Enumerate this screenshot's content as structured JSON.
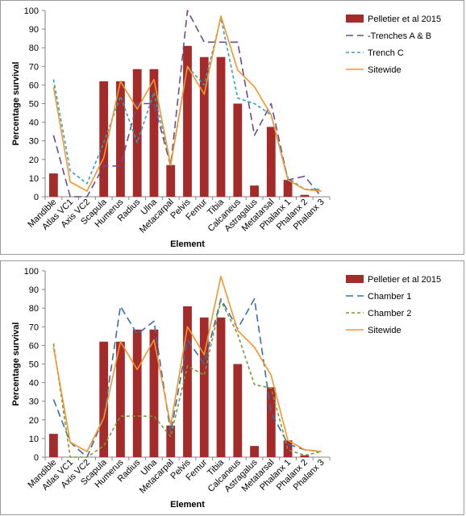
{
  "chart_data": [
    {
      "type": "bar",
      "title": "",
      "xlabel": "Element",
      "ylabel": "Percentage survival",
      "ylim": [
        0,
        100
      ],
      "yticks": [
        0,
        10,
        20,
        30,
        40,
        50,
        60,
        70,
        80,
        90,
        100
      ],
      "grid": false,
      "legend_position": "right",
      "categories": [
        "Mandible",
        "Atlas VC1",
        "Axis VC2",
        "Scapula",
        "Humerus",
        "Radius",
        "Ulna",
        "Metacarpal",
        "Pelvis",
        "Femur",
        "Tibia",
        "Calcaneus",
        "Astragalus",
        "Metatarsal",
        "Phalanx 1",
        "Phalanx 2",
        "Phalanx 3"
      ],
      "series": [
        {
          "name": "Pelletier et al 2015",
          "type": "bar",
          "color": "#a52a2a",
          "values": [
            12.5,
            0,
            0,
            62,
            62,
            68.5,
            68.5,
            17,
            81,
            75,
            75,
            50,
            6,
            37.5,
            9,
            1,
            0
          ]
        },
        {
          "name": "-Trenches A & B",
          "type": "line",
          "dash": "long-dash",
          "color": "#6a4c93",
          "values": [
            33,
            0,
            0,
            16.5,
            16.5,
            50,
            50,
            16.5,
            100,
            83,
            83,
            83,
            33,
            50,
            9,
            11,
            0
          ]
        },
        {
          "name": "Trench C",
          "type": "line",
          "dash": "short-dash",
          "color": "#31a0bf",
          "values": [
            63,
            14,
            7,
            29,
            54,
            29,
            56,
            17,
            70,
            60,
            96,
            53,
            50,
            44,
            10,
            4,
            4
          ]
        },
        {
          "name": "Sitewide",
          "type": "line",
          "dash": "solid",
          "color": "#f2952c",
          "values": [
            59,
            8,
            3,
            21,
            62,
            47,
            63,
            17,
            70,
            55,
            97,
            68,
            59,
            44,
            9,
            4,
            3
          ]
        }
      ]
    },
    {
      "type": "bar",
      "title": "",
      "xlabel": "Element",
      "ylabel": "Percentage survival",
      "ylim": [
        0,
        100
      ],
      "yticks": [
        0,
        10,
        20,
        30,
        40,
        50,
        60,
        70,
        80,
        90,
        100
      ],
      "grid": false,
      "legend_position": "right",
      "categories": [
        "Mandible",
        "Atlas VC1",
        "Axis VC2",
        "Scapula",
        "Humerus",
        "Radius",
        "Ulna",
        "Metacarpal",
        "Pelvis",
        "Femur",
        "Tibia",
        "Calcaneus",
        "Astragalus",
        "Metatarsal",
        "Phalanx 1",
        "Phalanx 2",
        "Phalanx 3"
      ],
      "series": [
        {
          "name": "Pelletier et al 2015",
          "type": "bar",
          "color": "#a52a2a",
          "values": [
            12.5,
            0,
            0,
            62,
            62,
            68.5,
            68.5,
            17,
            81,
            75,
            75,
            50,
            6,
            37.5,
            9,
            1,
            0
          ]
        },
        {
          "name": "Chamber 1",
          "type": "line",
          "dash": "long-dash",
          "color": "#3a6ea5",
          "values": [
            31,
            8,
            0,
            21,
            81,
            66,
            73,
            13,
            63,
            50,
            85,
            69,
            85,
            24,
            7,
            4,
            3
          ]
        },
        {
          "name": "Chamber 2",
          "type": "line",
          "dash": "short-dash",
          "color": "#7a9a3a",
          "values": [
            61,
            0,
            0,
            6,
            22,
            22,
            22,
            11,
            49,
            44,
            84,
            66,
            39,
            37,
            4,
            1,
            3
          ]
        },
        {
          "name": "Sitewide",
          "type": "line",
          "dash": "solid",
          "color": "#f2952c",
          "values": [
            59,
            8,
            3,
            21,
            62,
            47,
            63,
            17,
            70,
            55,
            97,
            68,
            59,
            44,
            9,
            4,
            3
          ]
        }
      ]
    }
  ]
}
